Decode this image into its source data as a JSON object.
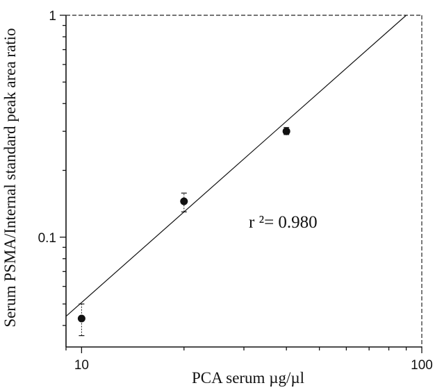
{
  "chart_data": {
    "type": "scatter",
    "x_scale": "log",
    "y_scale": "log",
    "xlim": [
      9,
      100
    ],
    "ylim": [
      0.032,
      1
    ],
    "x_ticks": [
      10,
      100
    ],
    "x_tick_labels": [
      "10",
      "100"
    ],
    "y_ticks": [
      0.1,
      1
    ],
    "y_tick_labels": [
      "0.1",
      "1"
    ],
    "xlabel": "PCA  serum µg/µl",
    "ylabel": "Serum PSMA/Internal standard peak area ratio",
    "points": [
      {
        "x": 10,
        "y": 0.043,
        "err_low": 0.036,
        "err_high": 0.05
      },
      {
        "x": 20,
        "y": 0.145,
        "err_low": 0.13,
        "err_high": 0.158
      },
      {
        "x": 40,
        "y": 0.3,
        "err_low": 0.29,
        "err_high": 0.312
      }
    ],
    "fit_line": {
      "x": [
        9,
        90
      ],
      "y": [
        0.044,
        1
      ]
    },
    "annotation": "r ²= 0.980",
    "grid": false,
    "frame": "dashed top and right borders"
  }
}
